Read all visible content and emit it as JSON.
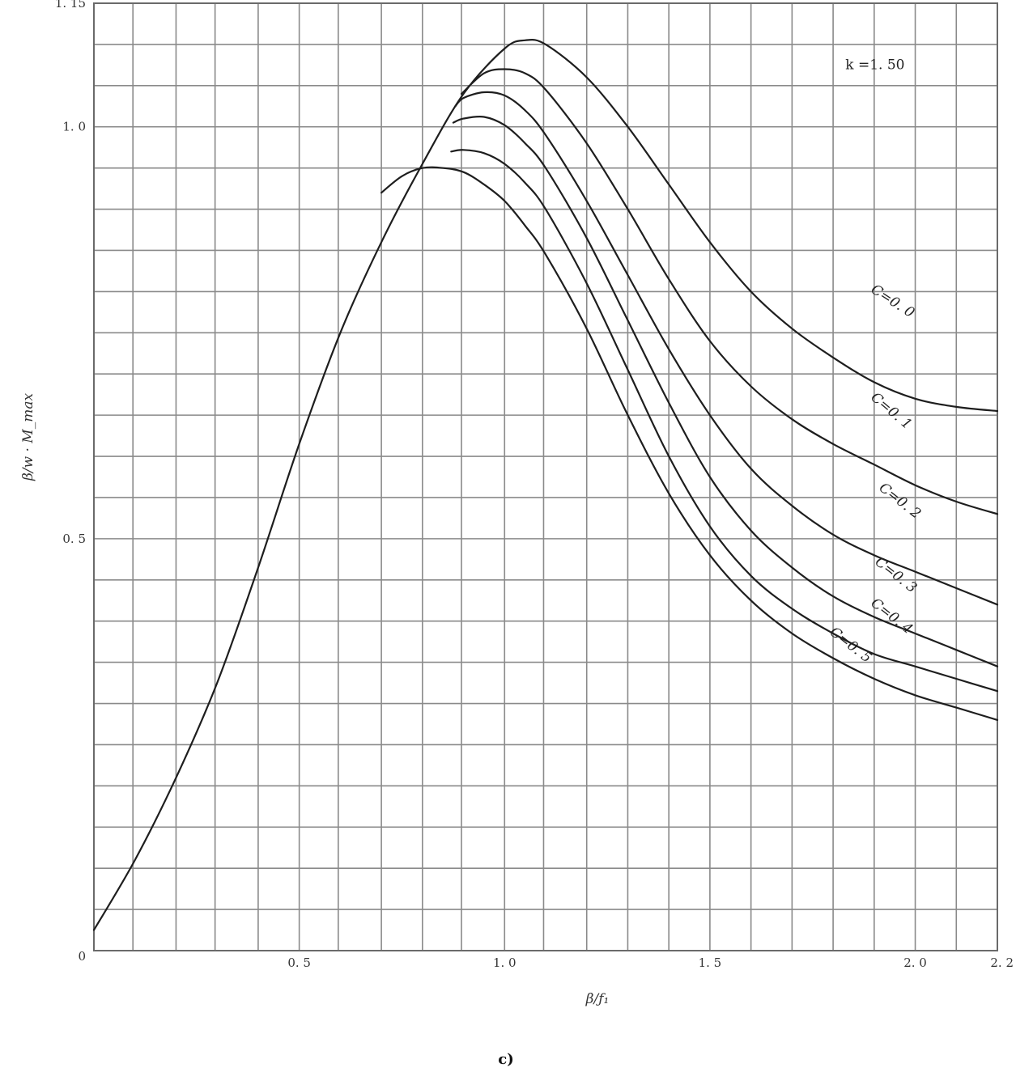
{
  "chart_data": {
    "type": "line",
    "title": "",
    "xlabel": "β/ƒ₁",
    "ylabel": "β/w · M_max",
    "xlim": [
      0,
      2.2
    ],
    "ylim": [
      0,
      1.15
    ],
    "x_ticks": [
      {
        "value": 0.5,
        "label": "0. 5"
      },
      {
        "value": 1.0,
        "label": "1. 0"
      },
      {
        "value": 1.5,
        "label": "1. 5"
      },
      {
        "value": 2.0,
        "label": "2. 0"
      },
      {
        "value": 2.2,
        "label": "2. 2"
      }
    ],
    "y_ticks": [
      {
        "value": 0,
        "label": "0"
      },
      {
        "value": 0.5,
        "label": "0. 5"
      },
      {
        "value": 1.0,
        "label": "1. 0"
      },
      {
        "value": 1.15,
        "label": "1. 15"
      }
    ],
    "grid": true,
    "x_grid": [
      0.095,
      0.2,
      0.295,
      0.4,
      0.5,
      0.595,
      0.7,
      0.8,
      0.895,
      1.0,
      1.095,
      1.2,
      1.3,
      1.4,
      1.5,
      1.6,
      1.7,
      1.8,
      1.9,
      2.0,
      2.1,
      2.2
    ],
    "y_grid": [
      0.05,
      0.1,
      0.15,
      0.2,
      0.25,
      0.3,
      0.35,
      0.4,
      0.45,
      0.5,
      0.55,
      0.6,
      0.65,
      0.7,
      0.75,
      0.8,
      0.85,
      0.9,
      0.95,
      1.0,
      1.05,
      1.1,
      1.15
    ],
    "annotations": [
      {
        "text": "k =1. 50",
        "x": 1.83,
        "y": 1.07
      }
    ],
    "series": [
      {
        "name": "C=0. 0",
        "label_at": {
          "x": 1.89,
          "y": 0.8,
          "angle": 33
        },
        "points": [
          [
            0,
            0.025
          ],
          [
            0.1,
            0.11
          ],
          [
            0.2,
            0.21
          ],
          [
            0.3,
            0.325
          ],
          [
            0.4,
            0.465
          ],
          [
            0.5,
            0.615
          ],
          [
            0.6,
            0.75
          ],
          [
            0.7,
            0.86
          ],
          [
            0.8,
            0.955
          ],
          [
            0.9,
            1.04
          ],
          [
            1.0,
            1.095
          ],
          [
            1.05,
            1.105
          ],
          [
            1.1,
            1.1
          ],
          [
            1.2,
            1.06
          ],
          [
            1.3,
            1.0
          ],
          [
            1.4,
            0.93
          ],
          [
            1.5,
            0.86
          ],
          [
            1.6,
            0.8
          ],
          [
            1.7,
            0.755
          ],
          [
            1.8,
            0.72
          ],
          [
            1.9,
            0.69
          ],
          [
            2.0,
            0.67
          ],
          [
            2.1,
            0.66
          ],
          [
            2.2,
            0.655
          ]
        ]
      },
      {
        "name": "C=0. 1",
        "label_at": {
          "x": 1.89,
          "y": 0.67,
          "angle": 40
        },
        "points": [
          [
            0.895,
            1.04
          ],
          [
            0.95,
            1.065
          ],
          [
            1.0,
            1.07
          ],
          [
            1.05,
            1.065
          ],
          [
            1.1,
            1.045
          ],
          [
            1.2,
            0.98
          ],
          [
            1.3,
            0.9
          ],
          [
            1.4,
            0.815
          ],
          [
            1.5,
            0.74
          ],
          [
            1.6,
            0.685
          ],
          [
            1.7,
            0.645
          ],
          [
            1.8,
            0.615
          ],
          [
            1.9,
            0.59
          ],
          [
            2.0,
            0.565
          ],
          [
            2.1,
            0.545
          ],
          [
            2.2,
            0.53
          ]
        ]
      },
      {
        "name": "C=0. 2",
        "label_at": {
          "x": 1.91,
          "y": 0.56,
          "angle": 38
        },
        "points": [
          [
            0.88,
            1.025
          ],
          [
            0.9,
            1.035
          ],
          [
            0.95,
            1.042
          ],
          [
            1.0,
            1.038
          ],
          [
            1.05,
            1.02
          ],
          [
            1.1,
            0.99
          ],
          [
            1.2,
            0.91
          ],
          [
            1.3,
            0.82
          ],
          [
            1.4,
            0.73
          ],
          [
            1.5,
            0.65
          ],
          [
            1.6,
            0.585
          ],
          [
            1.7,
            0.54
          ],
          [
            1.8,
            0.505
          ],
          [
            1.9,
            0.48
          ],
          [
            2.0,
            0.46
          ],
          [
            2.1,
            0.44
          ],
          [
            2.2,
            0.42
          ]
        ]
      },
      {
        "name": "C=0. 3",
        "label_at": {
          "x": 1.9,
          "y": 0.47,
          "angle": 38
        },
        "points": [
          [
            0.875,
            1.005
          ],
          [
            0.9,
            1.01
          ],
          [
            0.95,
            1.012
          ],
          [
            1.0,
            1.002
          ],
          [
            1.05,
            0.98
          ],
          [
            1.1,
            0.95
          ],
          [
            1.2,
            0.865
          ],
          [
            1.3,
            0.765
          ],
          [
            1.4,
            0.665
          ],
          [
            1.5,
            0.575
          ],
          [
            1.6,
            0.51
          ],
          [
            1.7,
            0.465
          ],
          [
            1.8,
            0.43
          ],
          [
            1.9,
            0.405
          ],
          [
            2.0,
            0.385
          ],
          [
            2.1,
            0.365
          ],
          [
            2.2,
            0.345
          ]
        ]
      },
      {
        "name": "C=0. 4",
        "label_at": {
          "x": 1.89,
          "y": 0.42,
          "angle": 38
        },
        "points": [
          [
            0.87,
            0.97
          ],
          [
            0.9,
            0.972
          ],
          [
            0.95,
            0.968
          ],
          [
            1.0,
            0.955
          ],
          [
            1.05,
            0.932
          ],
          [
            1.1,
            0.9
          ],
          [
            1.2,
            0.81
          ],
          [
            1.3,
            0.705
          ],
          [
            1.4,
            0.6
          ],
          [
            1.5,
            0.515
          ],
          [
            1.6,
            0.455
          ],
          [
            1.7,
            0.415
          ],
          [
            1.8,
            0.385
          ],
          [
            1.9,
            0.36
          ],
          [
            2.0,
            0.345
          ],
          [
            2.1,
            0.33
          ],
          [
            2.2,
            0.315
          ]
        ]
      },
      {
        "name": "C=0. 5",
        "label_at": {
          "x": 1.79,
          "y": 0.385,
          "angle": 38
        },
        "points": [
          [
            0.7,
            0.92
          ],
          [
            0.75,
            0.94
          ],
          [
            0.8,
            0.95
          ],
          [
            0.85,
            0.95
          ],
          [
            0.9,
            0.945
          ],
          [
            0.95,
            0.93
          ],
          [
            1.0,
            0.91
          ],
          [
            1.05,
            0.88
          ],
          [
            1.1,
            0.845
          ],
          [
            1.2,
            0.755
          ],
          [
            1.3,
            0.65
          ],
          [
            1.4,
            0.555
          ],
          [
            1.5,
            0.48
          ],
          [
            1.6,
            0.425
          ],
          [
            1.7,
            0.385
          ],
          [
            1.8,
            0.355
          ],
          [
            1.9,
            0.33
          ],
          [
            2.0,
            0.31
          ],
          [
            2.1,
            0.295
          ],
          [
            2.2,
            0.28
          ]
        ]
      }
    ],
    "caption": "c)"
  }
}
